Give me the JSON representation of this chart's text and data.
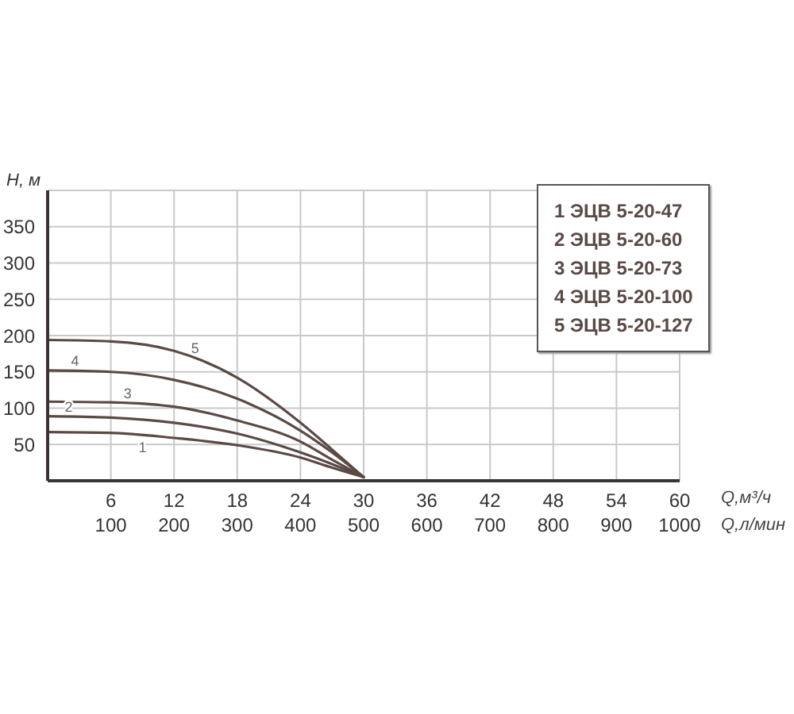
{
  "chart_data": {
    "type": "line",
    "xlabel": "Q,м³/ч",
    "ylabel": "H, м",
    "x2label": "Q,л/мин",
    "x": [
      0,
      6,
      12,
      18,
      24,
      27,
      30
    ],
    "series": [
      {
        "name": "1 ЭЦВ 5-20-47",
        "color": "#5a4a46",
        "values": [
          67,
          66,
          59,
          49,
          32,
          18,
          5
        ]
      },
      {
        "name": "2 ЭЦВ 5-20-60",
        "color": "#5a4a46",
        "values": [
          89,
          87,
          80,
          65,
          39,
          23,
          5
        ]
      },
      {
        "name": "3 ЭЦВ 5-20-73",
        "color": "#5a4a46",
        "values": [
          109,
          108,
          102,
          83,
          54,
          29,
          5
        ]
      },
      {
        "name": "4 ЭЦВ 5-20-100",
        "color": "#5a4a46",
        "values": [
          152,
          150,
          139,
          113,
          69,
          39,
          5
        ]
      },
      {
        "name": "5 ЭЦВ 5-20-127",
        "color": "#5a4a46",
        "values": [
          194,
          192,
          179,
          142,
          80,
          43,
          5
        ]
      }
    ],
    "xlim": [
      0,
      60
    ],
    "xticks": [
      6,
      12,
      18,
      24,
      30,
      36,
      42,
      48,
      54,
      60
    ],
    "x2lim": [
      0,
      1000
    ],
    "x2ticks": [
      100,
      200,
      300,
      400,
      500,
      600,
      700,
      800,
      900,
      1000
    ],
    "ylim": [
      0,
      400
    ],
    "yticks": [
      50,
      100,
      150,
      200,
      250,
      300,
      350,
      {
        "value": 400,
        "label": null
      }
    ],
    "grid": true,
    "legend": "top right",
    "annotations": [
      {
        "text": "1",
        "x": 9,
        "y": 63
      },
      {
        "text": "2",
        "x": 2,
        "y": 89
      },
      {
        "text": "3",
        "x": 7.6,
        "y": 107
      },
      {
        "text": "4",
        "x": 2.6,
        "y": 152
      },
      {
        "text": "5",
        "x": 14,
        "y": 169
      }
    ]
  }
}
